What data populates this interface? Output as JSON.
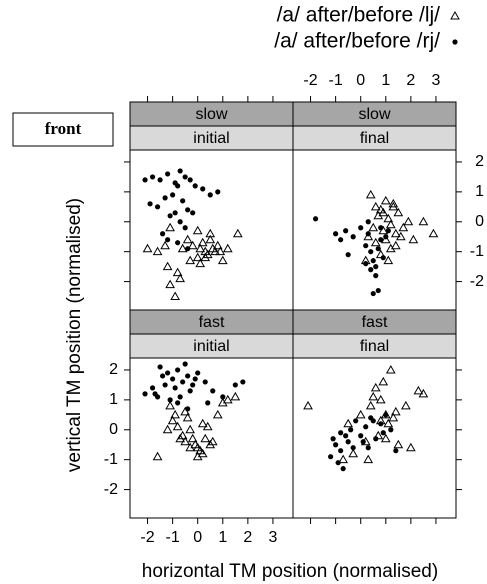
{
  "chart_data": {
    "type": "scatter",
    "annotation": "front",
    "xlabel": "horizontal TM position (normalised)",
    "ylabel": "vertical TM position (normalised)",
    "legend": [
      {
        "name": "/a/ after/before /lj/",
        "marker": "triangle",
        "color": "#000000"
      },
      {
        "name": "/a/ after/before /rj/",
        "marker": "dot",
        "color": "#000000"
      }
    ],
    "xlim": [
      -2.7,
      3.8
    ],
    "ylim": [
      -2.95,
      2.4
    ],
    "xticks": [
      -2,
      -1,
      0,
      1,
      2,
      3
    ],
    "yticks": [
      -2,
      -1,
      0,
      1,
      2
    ],
    "panels": [
      {
        "strip_top": "slow",
        "strip_bottom": "initial",
        "series": [
          {
            "x": [
              -2.0,
              -1.6,
              -1.3,
              -1.1,
              -0.8,
              -0.6,
              -0.4,
              -0.2,
              0.0,
              0.1,
              0.2,
              0.3,
              0.4,
              0.5,
              0.6,
              0.7,
              0.8,
              1.0,
              1.2,
              1.6,
              -0.7,
              -0.3,
              0.1,
              0.5,
              -1.2,
              -0.9,
              -1.1,
              0.0,
              0.9,
              0.3
            ],
            "values": [
              -0.9,
              -1.0,
              -0.8,
              -2.1,
              -1.7,
              -0.9,
              -0.6,
              -0.8,
              -1.2,
              -0.9,
              -0.7,
              -1.0,
              -1.1,
              -0.6,
              -0.9,
              -1.0,
              -0.8,
              -1.3,
              -0.9,
              -0.4,
              -1.9,
              -1.3,
              -1.4,
              -0.4,
              -1.5,
              -2.5,
              -0.2,
              -0.3,
              -1.0,
              -1.2
            ]
          },
          {
            "x": [
              -2.1,
              -1.8,
              -1.5,
              -1.2,
              -0.9,
              -0.7,
              -0.5,
              -0.3,
              -0.1,
              0.2,
              0.5,
              0.8,
              -1.9,
              -1.6,
              -1.3,
              -1.0,
              -0.8,
              -0.6,
              -0.4,
              -0.2,
              -1.1,
              -0.9,
              -0.7,
              -0.5,
              -1.4,
              -1.2,
              -0.8,
              -0.4
            ],
            "values": [
              1.4,
              1.5,
              1.4,
              1.6,
              1.3,
              1.7,
              1.5,
              1.4,
              1.2,
              1.1,
              0.9,
              1.0,
              0.6,
              0.5,
              0.8,
              0.9,
              1.2,
              0.7,
              0.4,
              0.3,
              0.2,
              0.3,
              0.0,
              -0.2,
              -0.4,
              -0.6,
              -0.7,
              -0.9
            ]
          }
        ]
      },
      {
        "strip_top": "slow",
        "strip_bottom": "final",
        "series": [
          {
            "x": [
              0.3,
              0.5,
              0.7,
              0.8,
              0.9,
              1.0,
              1.1,
              1.2,
              1.3,
              1.4,
              1.5,
              1.6,
              1.7,
              1.9,
              2.1,
              2.5,
              2.9,
              0.4,
              0.6,
              1.0,
              1.2,
              0.8,
              0.2,
              1.4,
              1.3,
              0.9,
              1.1,
              0.6
            ],
            "values": [
              -0.5,
              -0.2,
              0.2,
              0.4,
              -0.3,
              -0.6,
              0.1,
              -0.1,
              0.5,
              -0.4,
              0.3,
              -0.5,
              -0.2,
              0.0,
              -0.6,
              0.0,
              -0.4,
              0.9,
              0.5,
              0.7,
              -0.9,
              -1.1,
              -1.3,
              -0.8,
              0.6,
              0.3,
              -1.3,
              -0.7
            ]
          },
          {
            "x": [
              -1.8,
              -1.0,
              -0.8,
              -0.6,
              -0.3,
              0.0,
              0.2,
              0.3,
              0.4,
              0.5,
              0.6,
              0.7,
              0.8,
              0.9,
              1.0,
              1.1,
              0.4,
              0.6,
              0.5,
              0.7,
              0.3,
              -0.5,
              0.8,
              0.2
            ],
            "values": [
              0.1,
              -0.4,
              -0.6,
              -0.3,
              -0.5,
              -0.2,
              -0.8,
              -0.4,
              -1.0,
              -1.3,
              -1.5,
              -0.9,
              -0.6,
              -1.2,
              -0.5,
              -0.3,
              -1.6,
              -1.8,
              -2.4,
              -2.3,
              0.0,
              -1.1,
              -0.2,
              -1.4
            ]
          }
        ]
      },
      {
        "strip_top": "fast",
        "strip_bottom": "initial",
        "series": [
          {
            "x": [
              -1.6,
              -1.2,
              -1.0,
              -0.8,
              -0.6,
              -0.5,
              -0.4,
              -0.3,
              -0.2,
              -0.1,
              0.0,
              0.1,
              0.2,
              0.3,
              0.4,
              0.5,
              0.6,
              1.0,
              1.2,
              -1.1,
              -0.9,
              -0.7,
              0.0,
              0.8,
              1.5,
              -0.3,
              -0.5,
              0.2
            ],
            "values": [
              -0.9,
              0.0,
              0.3,
              0.1,
              -0.2,
              -0.4,
              0.4,
              -0.6,
              -0.3,
              -0.5,
              -0.6,
              -0.7,
              -0.8,
              -0.3,
              0.1,
              -0.5,
              -0.4,
              0.9,
              1.0,
              0.8,
              0.5,
              -0.3,
              -0.9,
              0.5,
              1.1,
              0.0,
              0.6,
              0.2
            ]
          },
          {
            "x": [
              -2.1,
              -1.8,
              -1.6,
              -1.4,
              -1.2,
              -1.0,
              -0.8,
              -0.6,
              -0.4,
              -0.2,
              0.0,
              0.3,
              0.6,
              1.0,
              1.5,
              1.8,
              -1.7,
              -1.3,
              -0.9,
              -0.5,
              -0.1,
              -1.1,
              -0.7,
              -0.3,
              -1.5,
              -0.8,
              -0.4,
              0.4
            ],
            "values": [
              1.2,
              1.4,
              1.1,
              1.8,
              1.9,
              1.7,
              2.0,
              1.6,
              1.8,
              1.5,
              1.9,
              1.6,
              1.3,
              1.1,
              1.5,
              1.6,
              1.2,
              1.5,
              1.4,
              2.2,
              1.7,
              1.0,
              1.1,
              1.3,
              2.1,
              0.9,
              0.7,
              0.9
            ]
          }
        ]
      },
      {
        "strip_top": "fast",
        "strip_bottom": "final",
        "series": [
          {
            "x": [
              -2.1,
              -0.7,
              -0.3,
              0.0,
              0.2,
              0.4,
              0.5,
              0.7,
              0.8,
              0.9,
              1.0,
              1.1,
              1.2,
              1.3,
              1.5,
              1.8,
              2.0,
              2.3,
              2.5,
              0.6,
              1.0,
              1.4,
              0.3,
              -0.5,
              0.8
            ],
            "values": [
              0.8,
              -1.0,
              -0.8,
              0.5,
              -0.4,
              0.8,
              1.1,
              -0.2,
              0.3,
              1.6,
              0.5,
              0.2,
              2.0,
              0.4,
              -0.5,
              0.8,
              -0.6,
              1.3,
              1.2,
              1.4,
              -0.3,
              0.6,
              -1.0,
              0.2,
              1.0
            ]
          },
          {
            "x": [
              -1.2,
              -1.0,
              -0.8,
              -0.7,
              -0.5,
              -0.3,
              -0.2,
              0.0,
              0.2,
              0.4,
              0.6,
              0.8,
              1.0,
              1.2,
              1.4,
              -0.9,
              -0.6,
              -0.4,
              0.1,
              0.5,
              0.9,
              -1.1,
              -0.8,
              0.3
            ],
            "values": [
              -0.9,
              -0.5,
              -0.7,
              -1.3,
              -0.4,
              -0.6,
              0.3,
              -0.2,
              0.1,
              0.4,
              -0.3,
              0.2,
              0.5,
              0.0,
              -0.7,
              -1.1,
              -0.2,
              0.0,
              -0.4,
              0.3,
              -0.1,
              -0.3,
              -0.1,
              -0.6
            ]
          }
        ]
      }
    ]
  }
}
